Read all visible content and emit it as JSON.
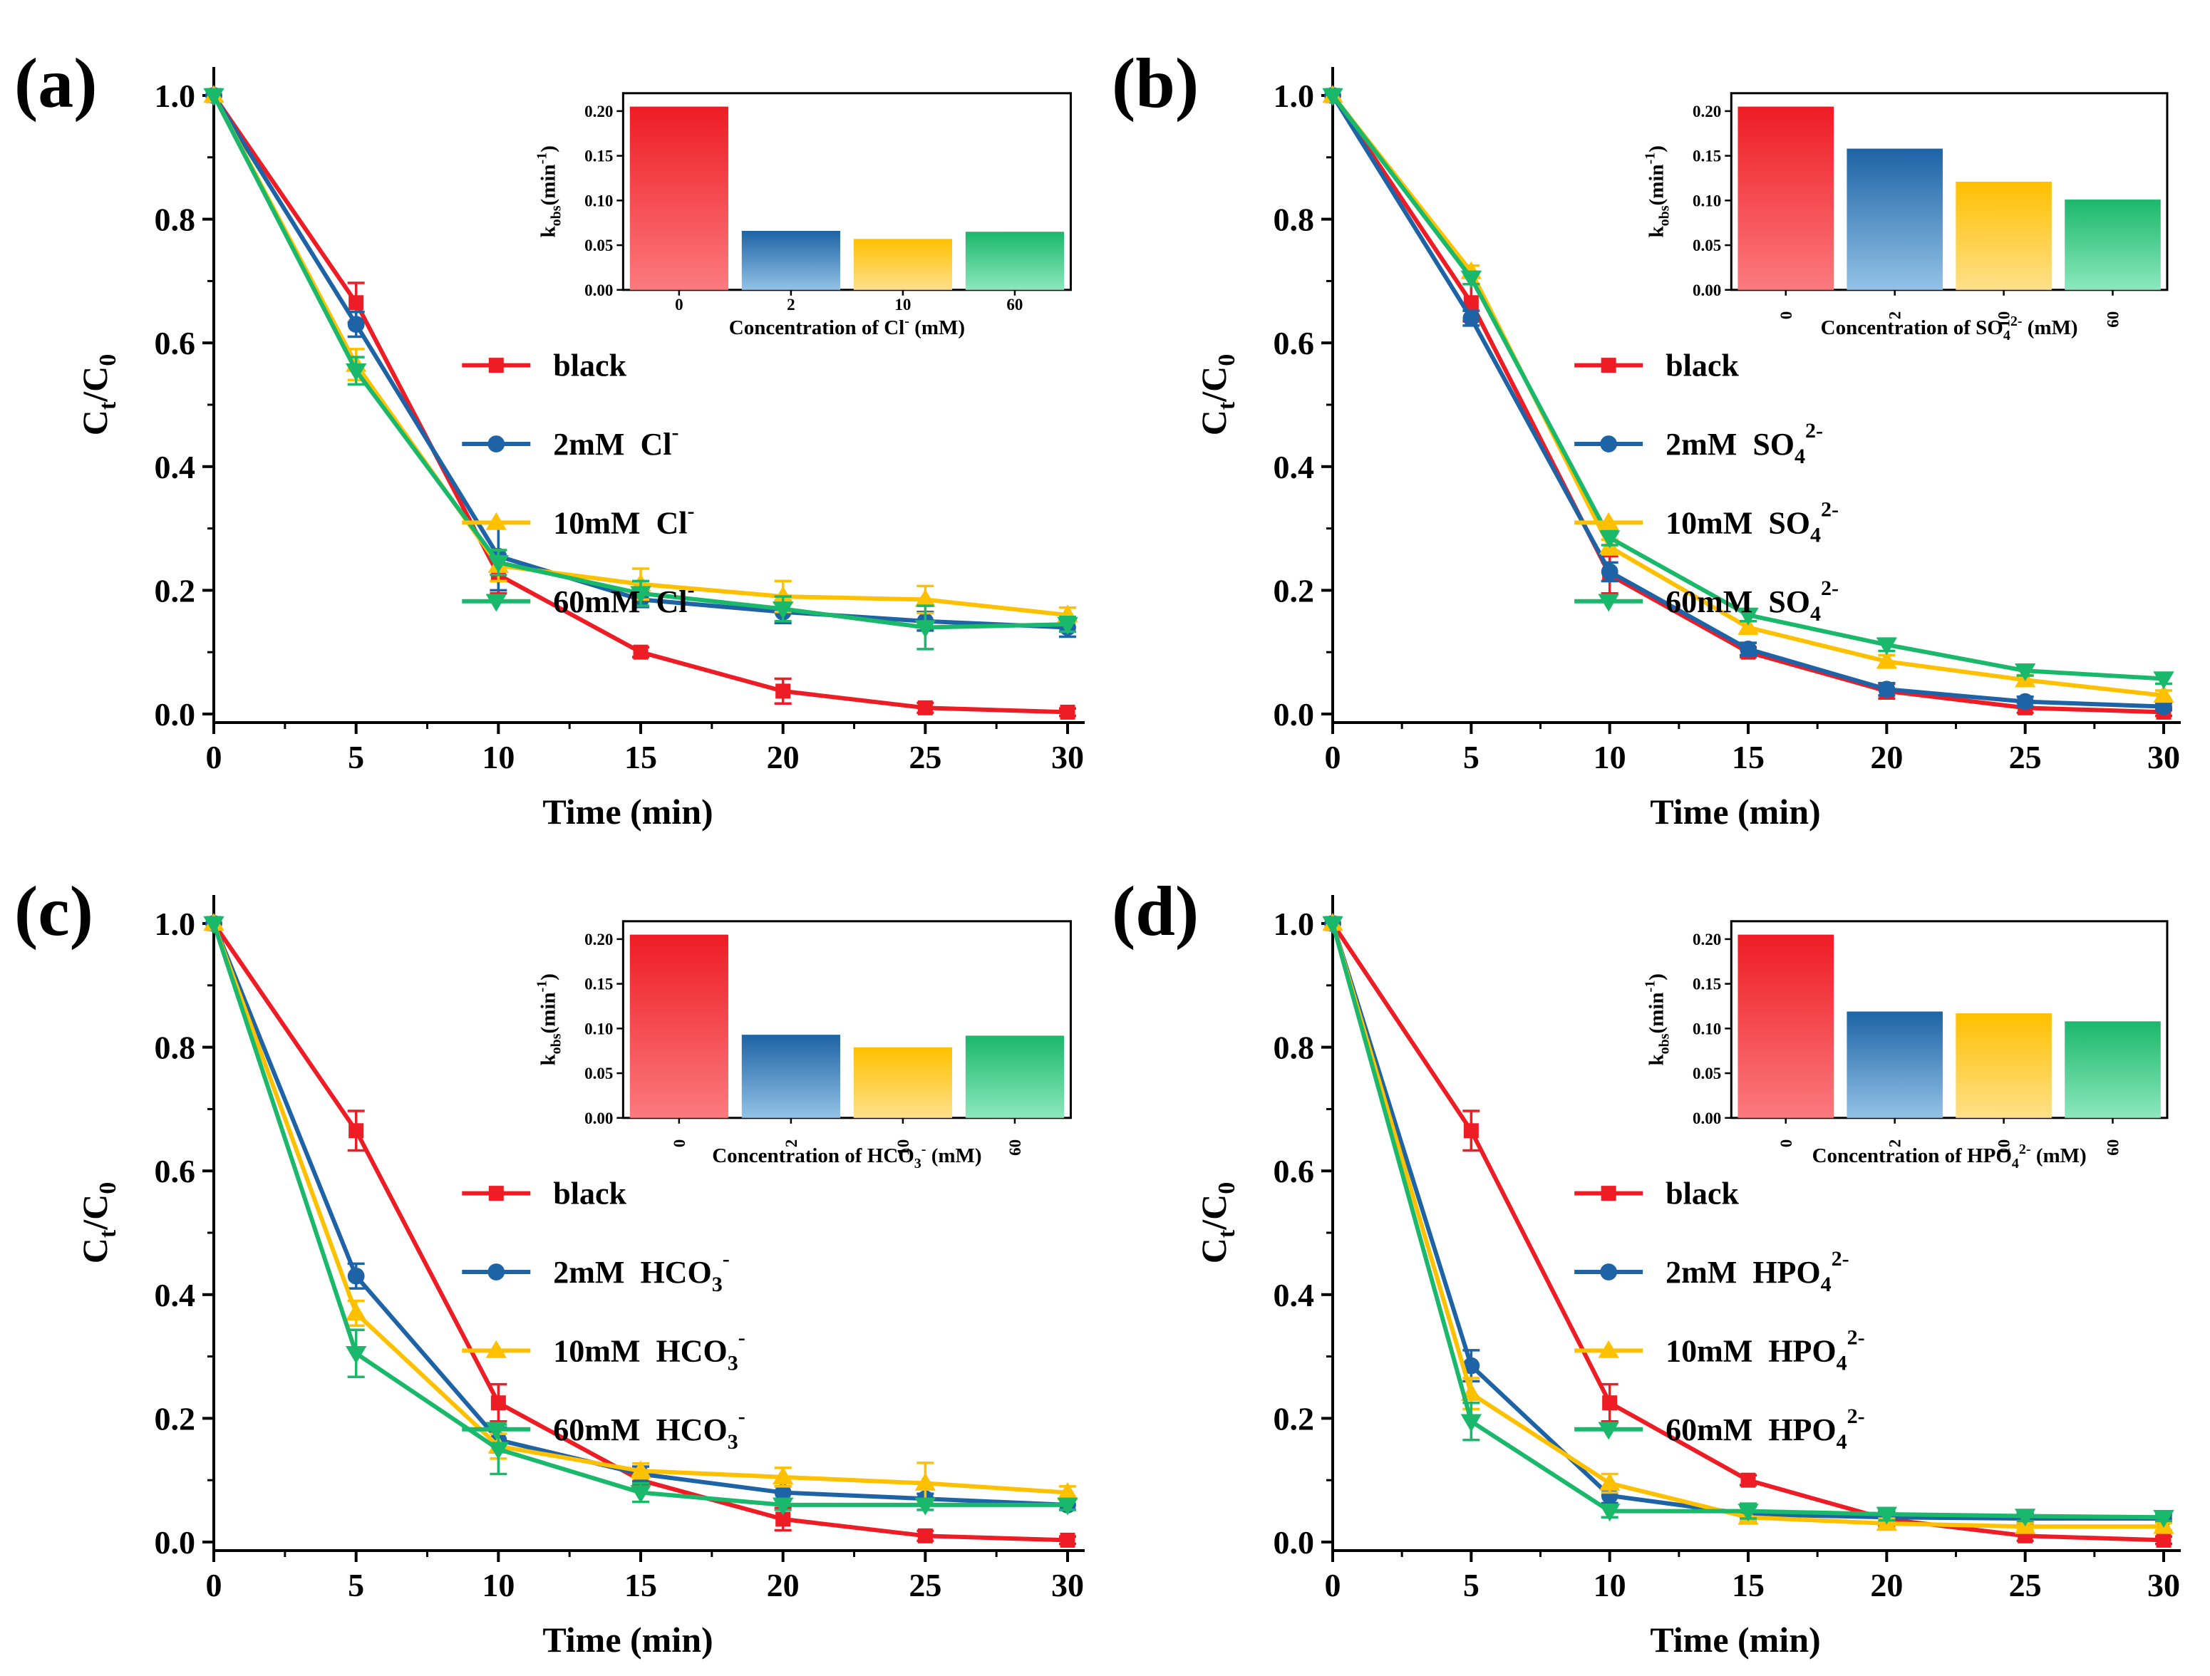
{
  "chart_data": [
    {
      "type": "line",
      "panel_label": "(a)",
      "xlabel": "Time (min)",
      "ylabel_main": "C",
      "ylabel_sub1": "t",
      "ylabel_mid": "/C",
      "ylabel_sub2": "0",
      "xlim": [
        0,
        30
      ],
      "ylim": [
        0,
        1.0
      ],
      "x_ticks": [
        0,
        5,
        10,
        15,
        20,
        25,
        30
      ],
      "x_tick_labels": [
        "0",
        "5",
        "10",
        "15",
        "20",
        "25",
        "30"
      ],
      "y_ticks": [
        0,
        0.2,
        0.4,
        0.6,
        0.8,
        1.0
      ],
      "y_tick_labels": [
        "0.0",
        "0.2",
        "0.4",
        "0.6",
        "0.8",
        "1.0"
      ],
      "legend_position": "middle-right",
      "x": [
        0,
        5,
        10,
        15,
        20,
        25,
        30
      ],
      "series": [
        {
          "name": "black",
          "label_main": "black",
          "label_ion": "",
          "label_sub": "",
          "label_sup": "",
          "color": "#ee1c24",
          "marker": "square",
          "values": [
            1.0,
            0.665,
            0.225,
            0.1,
            0.037,
            0.01,
            0.003
          ],
          "errors": [
            0,
            0.032,
            0.03,
            0.008,
            0.02,
            0.008,
            0.006
          ]
        },
        {
          "name": "2mM Cl-",
          "label_main": "2mM",
          "label_ion": "Cl",
          "label_sub": "",
          "label_sup": "-",
          "color": "#1d63a5",
          "marker": "circle",
          "values": [
            1.0,
            0.63,
            0.255,
            0.185,
            0.165,
            0.15,
            0.14
          ],
          "errors": [
            0,
            0.02,
            0.055,
            0.012,
            0.018,
            0.015,
            0.015
          ]
        },
        {
          "name": "10mM Cl-",
          "label_main": "10mM",
          "label_ion": "Cl",
          "label_sub": "",
          "label_sup": "-",
          "color": "#ffc000",
          "marker": "triangle-up",
          "values": [
            1.0,
            0.565,
            0.24,
            0.21,
            0.19,
            0.185,
            0.16
          ],
          "errors": [
            0,
            0.025,
            0.025,
            0.025,
            0.025,
            0.022,
            0.012
          ]
        },
        {
          "name": "60mM Cl-",
          "label_main": "60mM",
          "label_ion": "Cl",
          "label_sub": "",
          "label_sup": "-",
          "color": "#1ab86b",
          "marker": "triangle-down",
          "values": [
            1.0,
            0.555,
            0.245,
            0.195,
            0.17,
            0.14,
            0.145
          ],
          "errors": [
            0,
            0.022,
            0.02,
            0.02,
            0.02,
            0.035,
            0.012
          ]
        }
      ],
      "inset": {
        "type": "bar",
        "categories": [
          "0",
          "2",
          "10",
          "60"
        ],
        "values": [
          0.205,
          0.066,
          0.057,
          0.065
        ],
        "ylim": [
          0,
          0.22
        ],
        "y_ticks": [
          0,
          0.05,
          0.1,
          0.15,
          0.2
        ],
        "y_tick_labels": [
          "0.00",
          "0.05",
          "0.10",
          "0.15",
          "0.20"
        ],
        "ylabel_main": "k",
        "ylabel_sub": "obs",
        "ylabel_rest": "(min",
        "ylabel_sup": "-1",
        "ylabel_end": ")",
        "xlabel_pre": "Concentration of Cl",
        "xlabel_sub": "",
        "xlabel_sup": "-",
        "xlabel_post": " (mM)",
        "rotate_ticks": false,
        "bar_colors_top": [
          "#ee1c24",
          "#1d63a5",
          "#ffc000",
          "#1ab86b"
        ],
        "bar_colors_bottom": [
          "#fb7a7e",
          "#93c2e6",
          "#ffe08a",
          "#8ce8bc"
        ]
      }
    },
    {
      "type": "line",
      "panel_label": "(b)",
      "xlabel": "Time (min)",
      "ylabel_main": "C",
      "ylabel_sub1": "t",
      "ylabel_mid": "/C",
      "ylabel_sub2": "0",
      "xlim": [
        0,
        30
      ],
      "ylim": [
        0,
        1.0
      ],
      "x_ticks": [
        0,
        5,
        10,
        15,
        20,
        25,
        30
      ],
      "x_tick_labels": [
        "0",
        "5",
        "10",
        "15",
        "20",
        "25",
        "30"
      ],
      "y_ticks": [
        0,
        0.2,
        0.4,
        0.6,
        0.8,
        1.0
      ],
      "y_tick_labels": [
        "0.0",
        "0.2",
        "0.4",
        "0.6",
        "0.8",
        "1.0"
      ],
      "legend_position": "middle-right",
      "x": [
        0,
        5,
        10,
        15,
        20,
        25,
        30
      ],
      "series": [
        {
          "name": "black",
          "label_main": "black",
          "label_ion": "",
          "label_sub": "",
          "label_sup": "",
          "color": "#ee1c24",
          "marker": "square",
          "values": [
            1.0,
            0.665,
            0.225,
            0.1,
            0.037,
            0.01,
            0.003
          ],
          "errors": [
            0,
            0.03,
            0.03,
            0.008,
            0.012,
            0.008,
            0.006
          ]
        },
        {
          "name": "2mM SO42-",
          "label_main": "2mM",
          "label_ion": "SO",
          "label_sub": "4",
          "label_sup": "2-",
          "color": "#1d63a5",
          "marker": "circle",
          "values": [
            1.0,
            0.64,
            0.23,
            0.105,
            0.04,
            0.02,
            0.012
          ],
          "errors": [
            0,
            0.012,
            0.015,
            0.01,
            0.01,
            0.008,
            0.006
          ]
        },
        {
          "name": "10mM SO42-",
          "label_main": "10mM",
          "label_ion": "SO",
          "label_sub": "4",
          "label_sup": "2-",
          "color": "#ffc000",
          "marker": "triangle-up",
          "values": [
            1.0,
            0.715,
            0.27,
            0.14,
            0.085,
            0.055,
            0.03
          ],
          "errors": [
            0,
            0.01,
            0.012,
            0.01,
            0.01,
            0.008,
            0.008
          ]
        },
        {
          "name": "60mM SO42-",
          "label_main": "60mM",
          "label_ion": "SO",
          "label_sub": "4",
          "label_sup": "2-",
          "color": "#1ab86b",
          "marker": "triangle-down",
          "values": [
            1.0,
            0.705,
            0.285,
            0.16,
            0.112,
            0.07,
            0.057
          ],
          "errors": [
            0,
            0.01,
            0.012,
            0.01,
            0.01,
            0.008,
            0.008
          ]
        }
      ],
      "inset": {
        "type": "bar",
        "categories": [
          "0",
          "2",
          "10",
          "60"
        ],
        "values": [
          0.205,
          0.158,
          0.121,
          0.101
        ],
        "ylim": [
          0,
          0.22
        ],
        "y_ticks": [
          0,
          0.05,
          0.1,
          0.15,
          0.2
        ],
        "y_tick_labels": [
          "0.00",
          "0.05",
          "0.10",
          "0.15",
          "0.20"
        ],
        "ylabel_main": "k",
        "ylabel_sub": "obs",
        "ylabel_rest": "(min",
        "ylabel_sup": "-1",
        "ylabel_end": ")",
        "xlabel_pre": "Concentration of SO",
        "xlabel_sub": "4",
        "xlabel_sup": "2-",
        "xlabel_post": " (mM)",
        "rotate_ticks": true,
        "bar_colors_top": [
          "#ee1c24",
          "#1d63a5",
          "#ffc000",
          "#1ab86b"
        ],
        "bar_colors_bottom": [
          "#fb7a7e",
          "#93c2e6",
          "#ffe08a",
          "#8ce8bc"
        ]
      }
    },
    {
      "type": "line",
      "panel_label": "(c)",
      "xlabel": "Time (min)",
      "ylabel_main": "C",
      "ylabel_sub1": "t",
      "ylabel_mid": "/C",
      "ylabel_sub2": "0",
      "xlim": [
        0,
        30
      ],
      "ylim": [
        0,
        1.0
      ],
      "x_ticks": [
        0,
        5,
        10,
        15,
        20,
        25,
        30
      ],
      "x_tick_labels": [
        "0",
        "5",
        "10",
        "15",
        "20",
        "25",
        "30"
      ],
      "y_ticks": [
        0,
        0.2,
        0.4,
        0.6,
        0.8,
        1.0
      ],
      "y_tick_labels": [
        "0.0",
        "0.2",
        "0.4",
        "0.6",
        "0.8",
        "1.0"
      ],
      "legend_position": "middle-right",
      "x": [
        0,
        5,
        10,
        15,
        20,
        25,
        30
      ],
      "series": [
        {
          "name": "black",
          "label_main": "black",
          "label_ion": "",
          "label_sub": "",
          "label_sup": "",
          "color": "#ee1c24",
          "marker": "square",
          "values": [
            1.0,
            0.665,
            0.225,
            0.1,
            0.037,
            0.01,
            0.003
          ],
          "errors": [
            0,
            0.032,
            0.03,
            0.008,
            0.018,
            0.008,
            0.006
          ]
        },
        {
          "name": "2mM HCO3-",
          "label_main": "2mM",
          "label_ion": "HCO",
          "label_sub": "3",
          "label_sup": "-",
          "color": "#1d63a5",
          "marker": "circle",
          "values": [
            1.0,
            0.43,
            0.165,
            0.11,
            0.08,
            0.07,
            0.06
          ],
          "errors": [
            0,
            0.02,
            0.02,
            0.012,
            0.01,
            0.008,
            0.008
          ]
        },
        {
          "name": "10mM HCO3-",
          "label_main": "10mM",
          "label_ion": "HCO",
          "label_sub": "3",
          "label_sup": "-",
          "color": "#ffc000",
          "marker": "triangle-up",
          "values": [
            1.0,
            0.37,
            0.155,
            0.115,
            0.105,
            0.095,
            0.08
          ],
          "errors": [
            0,
            0.02,
            0.02,
            0.012,
            0.015,
            0.033,
            0.01
          ]
        },
        {
          "name": "60mM HCO3-",
          "label_main": "60mM",
          "label_ion": "HCO",
          "label_sub": "3",
          "label_sup": "-",
          "color": "#1ab86b",
          "marker": "triangle-down",
          "values": [
            1.0,
            0.305,
            0.15,
            0.08,
            0.06,
            0.06,
            0.06
          ],
          "errors": [
            0,
            0.038,
            0.04,
            0.015,
            0.008,
            0.008,
            0.008
          ]
        }
      ],
      "inset": {
        "type": "bar",
        "categories": [
          "0",
          "2",
          "10",
          "60"
        ],
        "values": [
          0.205,
          0.093,
          0.079,
          0.092
        ],
        "ylim": [
          0,
          0.22
        ],
        "y_ticks": [
          0,
          0.05,
          0.1,
          0.15,
          0.2
        ],
        "y_tick_labels": [
          "0.00",
          "0.05",
          "0.10",
          "0.15",
          "0.20"
        ],
        "ylabel_main": "k",
        "ylabel_sub": "obs",
        "ylabel_rest": "(min",
        "ylabel_sup": "-1",
        "ylabel_end": ")",
        "xlabel_pre": "Concentration of HCO",
        "xlabel_sub": "3",
        "xlabel_sup": "-",
        "xlabel_post": " (mM)",
        "rotate_ticks": true,
        "bar_colors_top": [
          "#ee1c24",
          "#1d63a5",
          "#ffc000",
          "#1ab86b"
        ],
        "bar_colors_bottom": [
          "#fb7a7e",
          "#93c2e6",
          "#ffe08a",
          "#8ce8bc"
        ]
      }
    },
    {
      "type": "line",
      "panel_label": "(d)",
      "xlabel": "Time (min)",
      "ylabel_main": "C",
      "ylabel_sub1": "t",
      "ylabel_mid": "/C",
      "ylabel_sub2": "0",
      "xlim": [
        0,
        30
      ],
      "ylim": [
        0,
        1.0
      ],
      "x_ticks": [
        0,
        5,
        10,
        15,
        20,
        25,
        30
      ],
      "x_tick_labels": [
        "0",
        "5",
        "10",
        "15",
        "20",
        "25",
        "30"
      ],
      "y_ticks": [
        0,
        0.2,
        0.4,
        0.6,
        0.8,
        1.0
      ],
      "y_tick_labels": [
        "0.0",
        "0.2",
        "0.4",
        "0.6",
        "0.8",
        "1.0"
      ],
      "legend_position": "middle-right",
      "x": [
        0,
        5,
        10,
        15,
        20,
        25,
        30
      ],
      "series": [
        {
          "name": "black",
          "label_main": "black",
          "label_ion": "",
          "label_sub": "",
          "label_sup": "",
          "color": "#ee1c24",
          "marker": "square",
          "values": [
            1.0,
            0.665,
            0.225,
            0.1,
            0.037,
            0.01,
            0.003
          ],
          "errors": [
            0,
            0.032,
            0.03,
            0.008,
            0.012,
            0.008,
            0.006
          ]
        },
        {
          "name": "2mM HPO42-",
          "label_main": "2mM",
          "label_ion": "HPO",
          "label_sub": "4",
          "label_sup": "2-",
          "color": "#1d63a5",
          "marker": "circle",
          "values": [
            1.0,
            0.285,
            0.075,
            0.045,
            0.04,
            0.038,
            0.038
          ],
          "errors": [
            0,
            0.025,
            0.012,
            0.012,
            0.01,
            0.008,
            0.006
          ]
        },
        {
          "name": "10mM HPO42-",
          "label_main": "10mM",
          "label_ion": "HPO",
          "label_sub": "4",
          "label_sup": "2-",
          "color": "#ffc000",
          "marker": "triangle-up",
          "values": [
            1.0,
            0.24,
            0.095,
            0.04,
            0.03,
            0.025,
            0.025
          ],
          "errors": [
            0,
            0.025,
            0.015,
            0.01,
            0.008,
            0.006,
            0.006
          ]
        },
        {
          "name": "60mM HPO42-",
          "label_main": "60mM",
          "label_ion": "HPO",
          "label_sub": "4",
          "label_sup": "2-",
          "color": "#1ab86b",
          "marker": "triangle-down",
          "values": [
            1.0,
            0.195,
            0.05,
            0.05,
            0.045,
            0.042,
            0.04
          ],
          "errors": [
            0,
            0.03,
            0.01,
            0.012,
            0.01,
            0.008,
            0.006
          ]
        }
      ],
      "inset": {
        "type": "bar",
        "categories": [
          "0",
          "2",
          "10",
          "60"
        ],
        "values": [
          0.205,
          0.119,
          0.117,
          0.108
        ],
        "ylim": [
          0,
          0.22
        ],
        "y_ticks": [
          0,
          0.05,
          0.1,
          0.15,
          0.2
        ],
        "y_tick_labels": [
          "0.00",
          "0.05",
          "0.10",
          "0.15",
          "0.20"
        ],
        "ylabel_main": "k",
        "ylabel_sub": "obs",
        "ylabel_rest": "(min",
        "ylabel_sup": "-1",
        "ylabel_end": ")",
        "xlabel_pre": "Concentration of HPO",
        "xlabel_sub": "4",
        "xlabel_sup": "2-",
        "xlabel_post": " (mM)",
        "rotate_ticks": true,
        "bar_colors_top": [
          "#ee1c24",
          "#1d63a5",
          "#ffc000",
          "#1ab86b"
        ],
        "bar_colors_bottom": [
          "#fb7a7e",
          "#93c2e6",
          "#ffe08a",
          "#8ce8bc"
        ]
      }
    }
  ]
}
